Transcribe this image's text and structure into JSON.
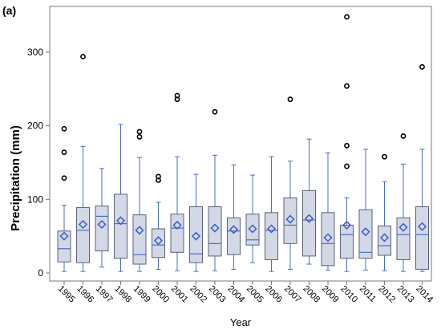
{
  "panel_label": "(a)",
  "chart_data": {
    "type": "boxplot",
    "title": "",
    "xlabel": "Year",
    "ylabel": "Precipitation (mm)",
    "ylim": [
      0,
      355
    ],
    "yticks": [
      0,
      100,
      200,
      300
    ],
    "grid": false,
    "legend": "none",
    "colors": {
      "box_fill": "#d3d8e6",
      "box_edge": "#5a6275",
      "whisker": "#4a6fc0",
      "median": "#4a6fc0",
      "mean_marker": "#3a5ec8",
      "outlier": "#000000"
    },
    "categories": [
      "1995",
      "1996",
      "1997",
      "1998",
      "1999",
      "2000",
      "2001",
      "2002",
      "2003",
      "2004",
      "2005",
      "2006",
      "2007",
      "2008",
      "2009",
      "2010",
      "2011",
      "2012",
      "2013",
      "2014"
    ],
    "boxes": [
      {
        "min": 2,
        "q1": 15,
        "median": 33,
        "q3": 57,
        "max": 92,
        "mean": 50,
        "outliers": [
          129,
          164,
          196
        ]
      },
      {
        "min": 2,
        "q1": 14,
        "median": 58,
        "q3": 89,
        "max": 172,
        "mean": 66,
        "outliers": [
          294
        ]
      },
      {
        "min": 8,
        "q1": 30,
        "median": 77,
        "q3": 91,
        "max": 142,
        "mean": 66,
        "outliers": []
      },
      {
        "min": 2,
        "q1": 20,
        "median": 67,
        "q3": 107,
        "max": 202,
        "mean": 71,
        "outliers": []
      },
      {
        "min": 2,
        "q1": 12,
        "median": 25,
        "q3": 79,
        "max": 157,
        "mean": 58,
        "outliers": [
          185,
          192
        ]
      },
      {
        "min": 5,
        "q1": 21,
        "median": 38,
        "q3": 60,
        "max": 96,
        "mean": 44,
        "outliers": [
          126,
          131
        ]
      },
      {
        "min": 3,
        "q1": 28,
        "median": 61,
        "q3": 80,
        "max": 158,
        "mean": 65,
        "outliers": [
          236,
          241
        ]
      },
      {
        "min": 2,
        "q1": 14,
        "median": 26,
        "q3": 90,
        "max": 134,
        "mean": 50,
        "outliers": []
      },
      {
        "min": 3,
        "q1": 23,
        "median": 40,
        "q3": 90,
        "max": 160,
        "mean": 61,
        "outliers": [
          219
        ]
      },
      {
        "min": 5,
        "q1": 25,
        "median": 57,
        "q3": 75,
        "max": 147,
        "mean": 59,
        "outliers": []
      },
      {
        "min": 14,
        "q1": 38,
        "median": 45,
        "q3": 80,
        "max": 133,
        "mean": 60,
        "outliers": []
      },
      {
        "min": 2,
        "q1": 18,
        "median": 58,
        "q3": 82,
        "max": 158,
        "mean": 60,
        "outliers": []
      },
      {
        "min": 5,
        "q1": 40,
        "median": 65,
        "q3": 102,
        "max": 152,
        "mean": 73,
        "outliers": [
          236
        ]
      },
      {
        "min": 12,
        "q1": 23,
        "median": 72,
        "q3": 112,
        "max": 182,
        "mean": 74,
        "outliers": []
      },
      {
        "min": 4,
        "q1": 10,
        "median": 40,
        "q3": 82,
        "max": 163,
        "mean": 48,
        "outliers": []
      },
      {
        "min": 2,
        "q1": 20,
        "median": 52,
        "q3": 65,
        "max": 102,
        "mean": 65,
        "outliers": [
          145,
          173,
          254,
          348
        ]
      },
      {
        "min": 4,
        "q1": 20,
        "median": 28,
        "q3": 86,
        "max": 168,
        "mean": 56,
        "outliers": []
      },
      {
        "min": 3,
        "q1": 24,
        "median": 37,
        "q3": 64,
        "max": 124,
        "mean": 48,
        "outliers": [
          158
        ]
      },
      {
        "min": 2,
        "q1": 18,
        "median": 52,
        "q3": 75,
        "max": 148,
        "mean": 62,
        "outliers": [
          186
        ]
      },
      {
        "min": 2,
        "q1": 5,
        "median": 52,
        "q3": 90,
        "max": 168,
        "mean": 63,
        "outliers": [
          280
        ]
      }
    ]
  }
}
